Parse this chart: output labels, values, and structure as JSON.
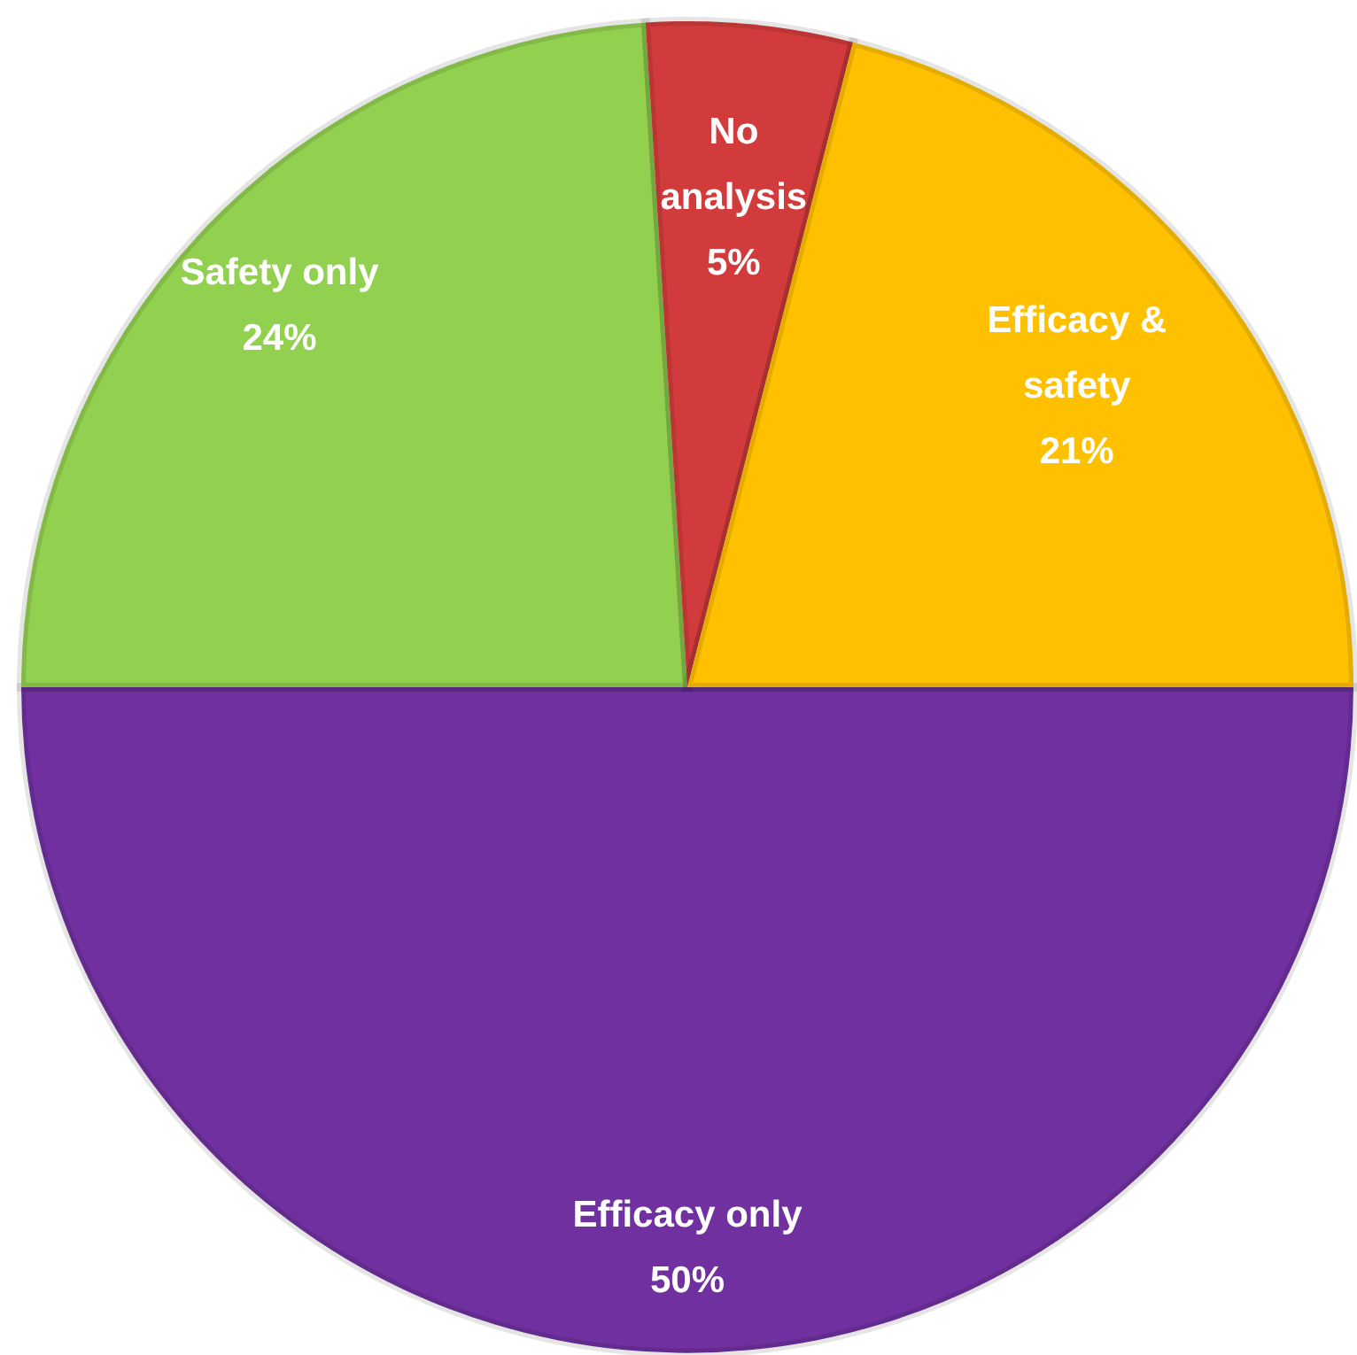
{
  "chart_data": {
    "type": "pie",
    "categories": [
      "Efficacy only",
      "Safety only",
      "No analysis",
      "Efficacy & safety"
    ],
    "values": [
      50,
      24,
      5,
      21
    ],
    "value_labels": [
      "50%",
      "24%",
      "5%",
      "21%"
    ],
    "colors": [
      "#7030a0",
      "#92d050",
      "#d13b3b",
      "#ffc000"
    ],
    "legend": false
  }
}
